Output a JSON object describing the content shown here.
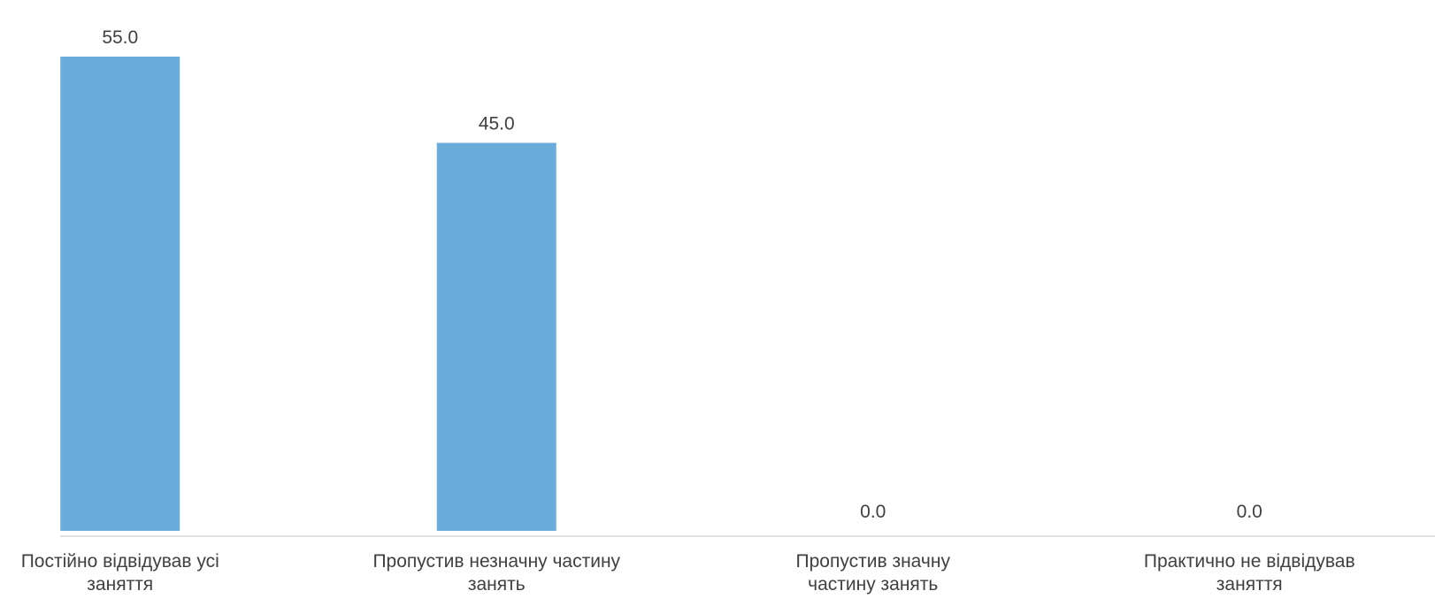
{
  "chart_data": {
    "type": "bar",
    "title": "",
    "xlabel": "",
    "ylabel": "",
    "categories": [
      "Постійно відвідував усі заняття",
      "Пропустив незначну частину занять",
      "Пропустив значну частину занять",
      "Практично не відвідував заняття"
    ],
    "category_lines": [
      [
        "Постійно відвідував усі",
        "заняття"
      ],
      [
        "Пропустив незначну частину",
        "занять"
      ],
      [
        "Пропустив значну",
        "частину занять"
      ],
      [
        "Практично не відвідував",
        "заняття"
      ]
    ],
    "values": [
      55.0,
      45.0,
      0.0,
      0.0
    ],
    "value_labels": [
      "55.0",
      "45.0",
      "0.0",
      "0.0"
    ],
    "ylim": [
      0,
      55
    ],
    "grid": false,
    "legend": "none",
    "colors": {
      "bar": "#6aacdb",
      "axis": "#d9d9d9",
      "text": "#404040"
    }
  }
}
